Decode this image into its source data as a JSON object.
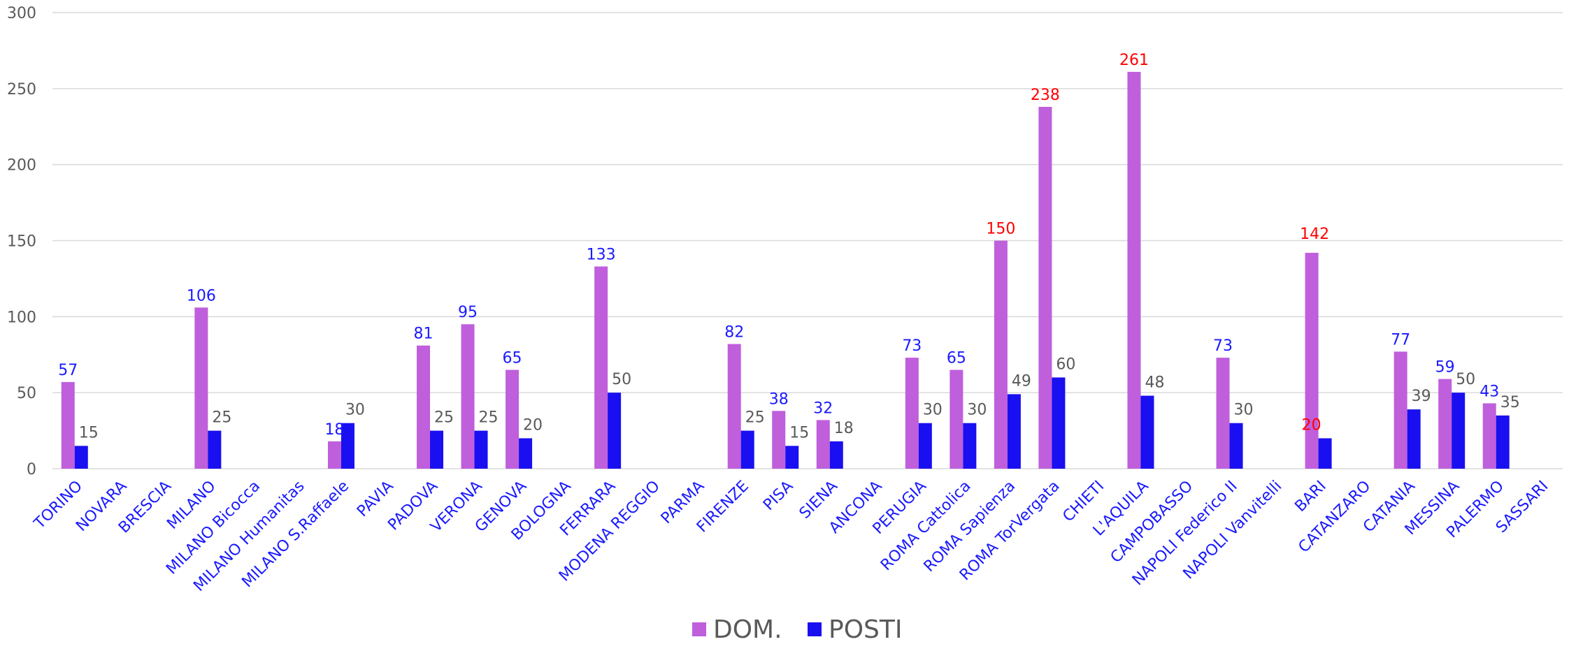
{
  "chart_data": {
    "type": "bar",
    "ylim": [
      0,
      300
    ],
    "yticks": [
      "0",
      "50",
      "100",
      "150",
      "200",
      "250",
      "300"
    ],
    "grid": true,
    "legend_position": "bottom-center",
    "categories": [
      "TORINO",
      "NOVARA",
      "BRESCIA",
      "MILANO",
      "MILANO Bicocca",
      "MILANO Humanitas",
      "MILANO S.Raffaele",
      "PAVIA",
      "PADOVA",
      "VERONA",
      "GENOVA",
      "BOLOGNA",
      "FERRARA",
      "MODENA REGGIO",
      "PARMA",
      "FIRENZE",
      "PISA",
      "SIENA",
      "ANCONA",
      "PERUGIA",
      "ROMA Cattolica",
      "ROMA Sapienza",
      "ROMA TorVergata",
      "CHIETI",
      "L'AQUILA",
      "CAMPOBASSO",
      "NAPOLI Federico II",
      "NAPOLI Vanvitelli",
      "BARI",
      "CATANZARO",
      "CATANIA",
      "MESSINA",
      "PALERMO",
      "SASSARI"
    ],
    "series": [
      {
        "name": "DOM.",
        "color": "#bf5fdc",
        "values": [
          57,
          null,
          null,
          106,
          null,
          null,
          18,
          null,
          81,
          95,
          65,
          null,
          133,
          null,
          null,
          82,
          38,
          32,
          null,
          73,
          65,
          150,
          238,
          null,
          261,
          null,
          73,
          null,
          142,
          null,
          77,
          59,
          43,
          null
        ],
        "label_colors": [
          "#1a1aff",
          null,
          null,
          "#1a1aff",
          null,
          null,
          "#1a1aff",
          null,
          "#1a1aff",
          "#1a1aff",
          "#1a1aff",
          null,
          "#1a1aff",
          null,
          null,
          "#1a1aff",
          "#1a1aff",
          "#1a1aff",
          null,
          "#1a1aff",
          "#1a1aff",
          "#ff0000",
          "#ff0000",
          null,
          "#ff0000",
          null,
          "#1a1aff",
          null,
          "#ff0000",
          null,
          "#1a1aff",
          "#1a1aff",
          "#1a1aff",
          null
        ]
      },
      {
        "name": "POSTI",
        "color": "#1a0ff0",
        "values": [
          15,
          null,
          null,
          25,
          null,
          null,
          30,
          null,
          25,
          25,
          20,
          null,
          50,
          null,
          null,
          25,
          15,
          18,
          null,
          30,
          30,
          49,
          60,
          null,
          48,
          null,
          30,
          null,
          20,
          null,
          39,
          50,
          35,
          null
        ],
        "label_colors": [
          "#595959",
          null,
          null,
          "#595959",
          null,
          null,
          "#595959",
          null,
          "#595959",
          "#595959",
          "#595959",
          null,
          "#595959",
          null,
          null,
          "#595959",
          "#595959",
          "#595959",
          null,
          "#595959",
          "#595959",
          "#595959",
          "#595959",
          null,
          "#595959",
          null,
          "#595959",
          null,
          "#ff0000",
          null,
          "#595959",
          "#595959",
          "#595959",
          null
        ]
      }
    ],
    "emphasized_category": "BARI",
    "category_label_color": "#1a1aff",
    "grid_color": "#d9d9d9"
  }
}
